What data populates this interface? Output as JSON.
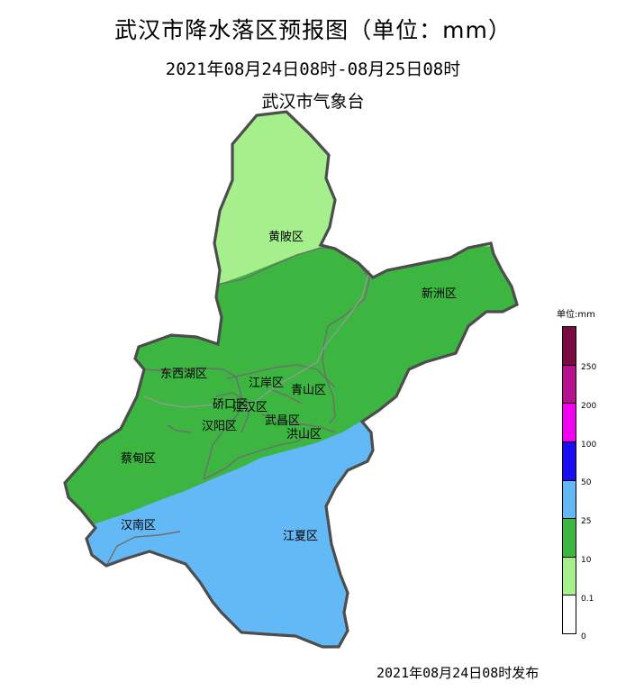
{
  "header": {
    "title": "武汉市降水落区预报图（单位：mm）",
    "period": "2021年08月24日08时-08月25日08时",
    "organization": "武汉市气象台"
  },
  "footer": {
    "issued": "2021年08月24日08时发布"
  },
  "districts": [
    {
      "id": "huangpi",
      "name": "黄陂区"
    },
    {
      "id": "xinzhou",
      "name": "新洲区"
    },
    {
      "id": "dongxihu",
      "name": "东西湖区"
    },
    {
      "id": "jiangan",
      "name": "江岸区"
    },
    {
      "id": "qingshan",
      "name": "青山区"
    },
    {
      "id": "qiaokou",
      "name": "硚口区"
    },
    {
      "id": "jianghan",
      "name": "江汉区"
    },
    {
      "id": "hanyang",
      "name": "汉阳区"
    },
    {
      "id": "wuchang",
      "name": "武昌区"
    },
    {
      "id": "hongshan",
      "name": "洪山区"
    },
    {
      "id": "caidian",
      "name": "蔡甸区"
    },
    {
      "id": "hannan",
      "name": "汉南区"
    },
    {
      "id": "jiangxia",
      "name": "江夏区"
    }
  ],
  "forecast_zones": [
    {
      "range": "0.1-10",
      "color": "#a5ef8c",
      "districts": [
        "黄陂区"
      ]
    },
    {
      "range": "10-25",
      "color": "#3cb541",
      "districts": [
        "新洲区",
        "东西湖区",
        "江岸区",
        "青山区",
        "硚口区",
        "江汉区",
        "汉阳区",
        "武昌区",
        "洪山区",
        "蔡甸区"
      ]
    },
    {
      "range": "25-50",
      "color": "#63b8f6",
      "districts": [
        "江夏区",
        "汉南区"
      ]
    }
  ],
  "legend": {
    "title": "单位:mm",
    "ticks": [
      "250",
      "200",
      "100",
      "50",
      "25",
      "10",
      "0.1",
      "0"
    ],
    "colors": [
      "#7a0a40",
      "#b8108f",
      "#f200f2",
      "#1a0ef0",
      "#63b8f6",
      "#3cb541",
      "#a5ef8c",
      "#ffffff"
    ]
  }
}
